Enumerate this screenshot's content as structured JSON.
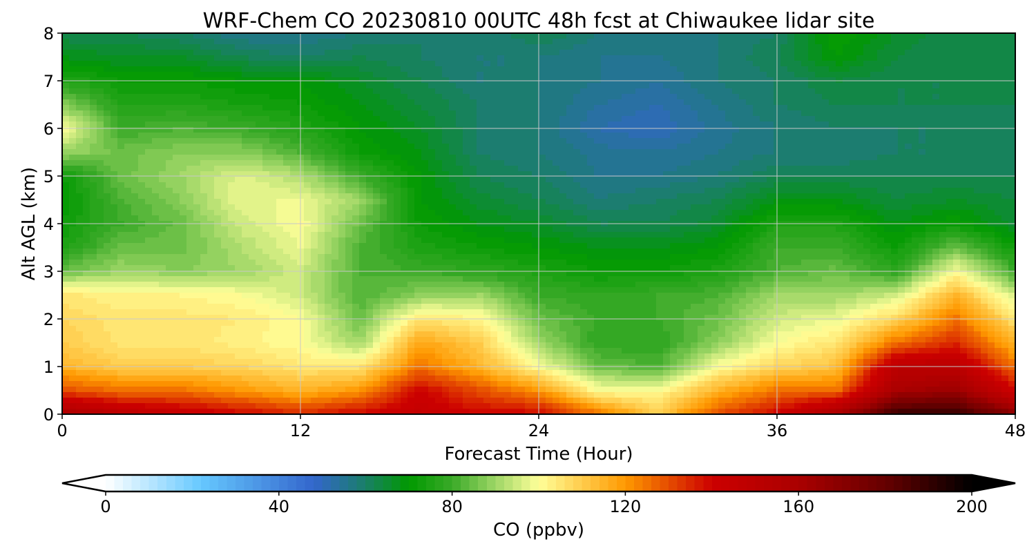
{
  "chart_data": {
    "type": "heatmap",
    "title": "WRF-Chem CO  20230810 00UTC 48h fcst at Chiwaukee lidar site",
    "xlabel": "Forecast Time (Hour)",
    "ylabel": "Alt AGL (km)",
    "xlim": [
      0,
      48
    ],
    "ylim": [
      0,
      8
    ],
    "grid": true,
    "x_ticks": [
      "0",
      "12",
      "24",
      "36",
      "48"
    ],
    "y_ticks": [
      "0",
      "1",
      "2",
      "3",
      "4",
      "5",
      "6",
      "7",
      "8"
    ],
    "x": [
      0,
      3,
      6,
      9,
      12,
      15,
      18,
      21,
      24,
      27,
      30,
      33,
      36,
      39,
      42,
      45,
      48
    ],
    "y": [
      0,
      0.5,
      1,
      1.5,
      2,
      2.5,
      3,
      3.5,
      4,
      4.5,
      5,
      5.5,
      6,
      6.5,
      7,
      7.5,
      8
    ],
    "z": [
      [
        160,
        150,
        145,
        140,
        135,
        140,
        145,
        140,
        140,
        125,
        110,
        130,
        140,
        160,
        190,
        190,
        170
      ],
      [
        130,
        125,
        125,
        120,
        115,
        120,
        140,
        130,
        120,
        100,
        100,
        115,
        125,
        125,
        160,
        165,
        140
      ],
      [
        115,
        110,
        110,
        108,
        105,
        105,
        125,
        115,
        100,
        85,
        82,
        100,
        108,
        112,
        150,
        150,
        125
      ],
      [
        110,
        105,
        105,
        103,
        100,
        90,
        118,
        110,
        90,
        78,
        78,
        88,
        100,
        105,
        125,
        135,
        115
      ],
      [
        108,
        105,
        105,
        104,
        100,
        85,
        105,
        102,
        85,
        80,
        80,
        85,
        95,
        98,
        108,
        125,
        105
      ],
      [
        105,
        102,
        102,
        100,
        95,
        82,
        88,
        90,
        80,
        78,
        80,
        82,
        90,
        90,
        95,
        115,
        95
      ],
      [
        85,
        90,
        88,
        90,
        95,
        82,
        80,
        78,
        75,
        72,
        72,
        75,
        82,
        85,
        78,
        100,
        80
      ],
      [
        75,
        85,
        85,
        92,
        98,
        82,
        75,
        72,
        70,
        68,
        68,
        70,
        80,
        80,
        72,
        85,
        72
      ],
      [
        72,
        80,
        85,
        95,
        100,
        85,
        72,
        68,
        66,
        62,
        62,
        65,
        75,
        75,
        68,
        72,
        65
      ],
      [
        70,
        82,
        88,
        98,
        98,
        90,
        70,
        65,
        62,
        58,
        60,
        62,
        68,
        68,
        64,
        66,
        64
      ],
      [
        72,
        85,
        90,
        97,
        92,
        80,
        70,
        62,
        60,
        56,
        56,
        58,
        62,
        62,
        62,
        62,
        62
      ],
      [
        90,
        85,
        88,
        88,
        82,
        72,
        68,
        60,
        58,
        55,
        54,
        56,
        58,
        58,
        60,
        60,
        62
      ],
      [
        100,
        80,
        82,
        80,
        76,
        70,
        66,
        60,
        58,
        52,
        50,
        55,
        58,
        60,
        60,
        60,
        62
      ],
      [
        88,
        76,
        76,
        74,
        72,
        68,
        64,
        60,
        58,
        54,
        52,
        56,
        60,
        62,
        62,
        62,
        62
      ],
      [
        76,
        72,
        72,
        70,
        70,
        66,
        62,
        58,
        58,
        56,
        54,
        58,
        60,
        64,
        62,
        62,
        64
      ],
      [
        68,
        66,
        66,
        62,
        60,
        62,
        60,
        58,
        58,
        56,
        56,
        58,
        62,
        70,
        64,
        62,
        64
      ],
      [
        62,
        62,
        60,
        56,
        56,
        58,
        60,
        58,
        62,
        58,
        58,
        58,
        60,
        72,
        66,
        62,
        64
      ]
    ],
    "colorbar": {
      "label": "CO  (ppbv)",
      "range": [
        0,
        200
      ],
      "step": 2,
      "extend": "both",
      "ticks": [
        "0",
        "40",
        "80",
        "120",
        "160",
        "200"
      ],
      "tick_values": [
        0,
        40,
        80,
        120,
        160,
        200
      ],
      "anchors": [
        {
          "v": 0,
          "c": "#ffffff"
        },
        {
          "v": 22,
          "c": "#66c8ff"
        },
        {
          "v": 48,
          "c": "#3366cc"
        },
        {
          "v": 58,
          "c": "#1e7a7a"
        },
        {
          "v": 70,
          "c": "#009900"
        },
        {
          "v": 80,
          "c": "#3aaa28"
        },
        {
          "v": 90,
          "c": "#9ed666"
        },
        {
          "v": 100,
          "c": "#ffff99"
        },
        {
          "v": 120,
          "c": "#ff9900"
        },
        {
          "v": 140,
          "c": "#cc0000"
        },
        {
          "v": 160,
          "c": "#aa0000"
        },
        {
          "v": 180,
          "c": "#660000"
        },
        {
          "v": 200,
          "c": "#000000"
        }
      ]
    }
  }
}
